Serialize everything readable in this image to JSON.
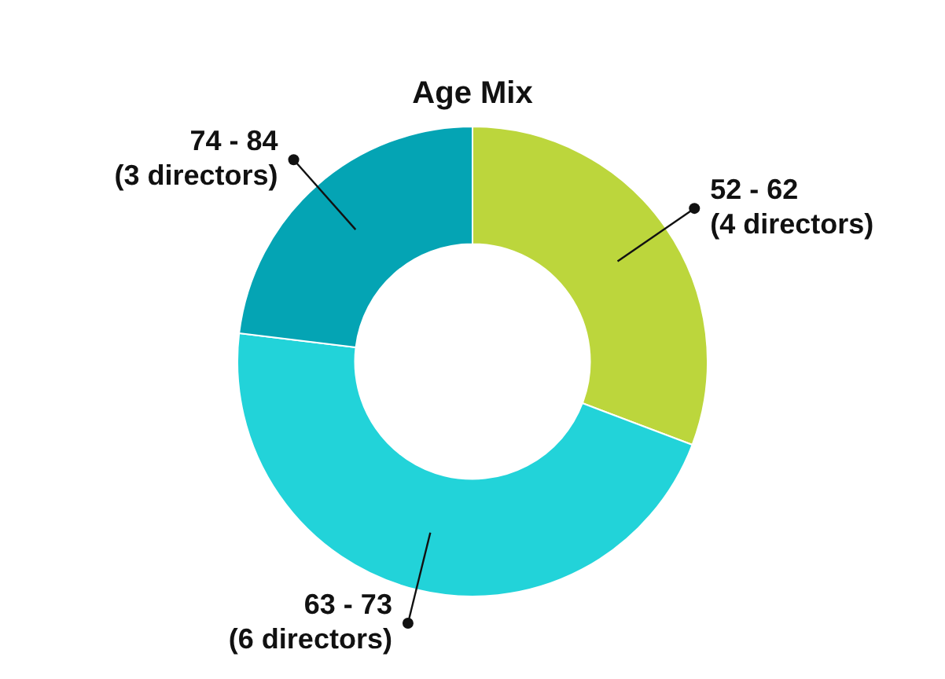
{
  "chart_data": {
    "type": "donut",
    "title": "Age Mix",
    "categories": [
      "52 - 62",
      "63 - 73",
      "74 - 84"
    ],
    "values": [
      4,
      6,
      3
    ],
    "colors": [
      "#bcd63c",
      "#22d3d9",
      "#04a4b4"
    ],
    "value_labels": [
      "(4 directors)",
      "(6 directors)",
      "(3 directors)"
    ]
  }
}
